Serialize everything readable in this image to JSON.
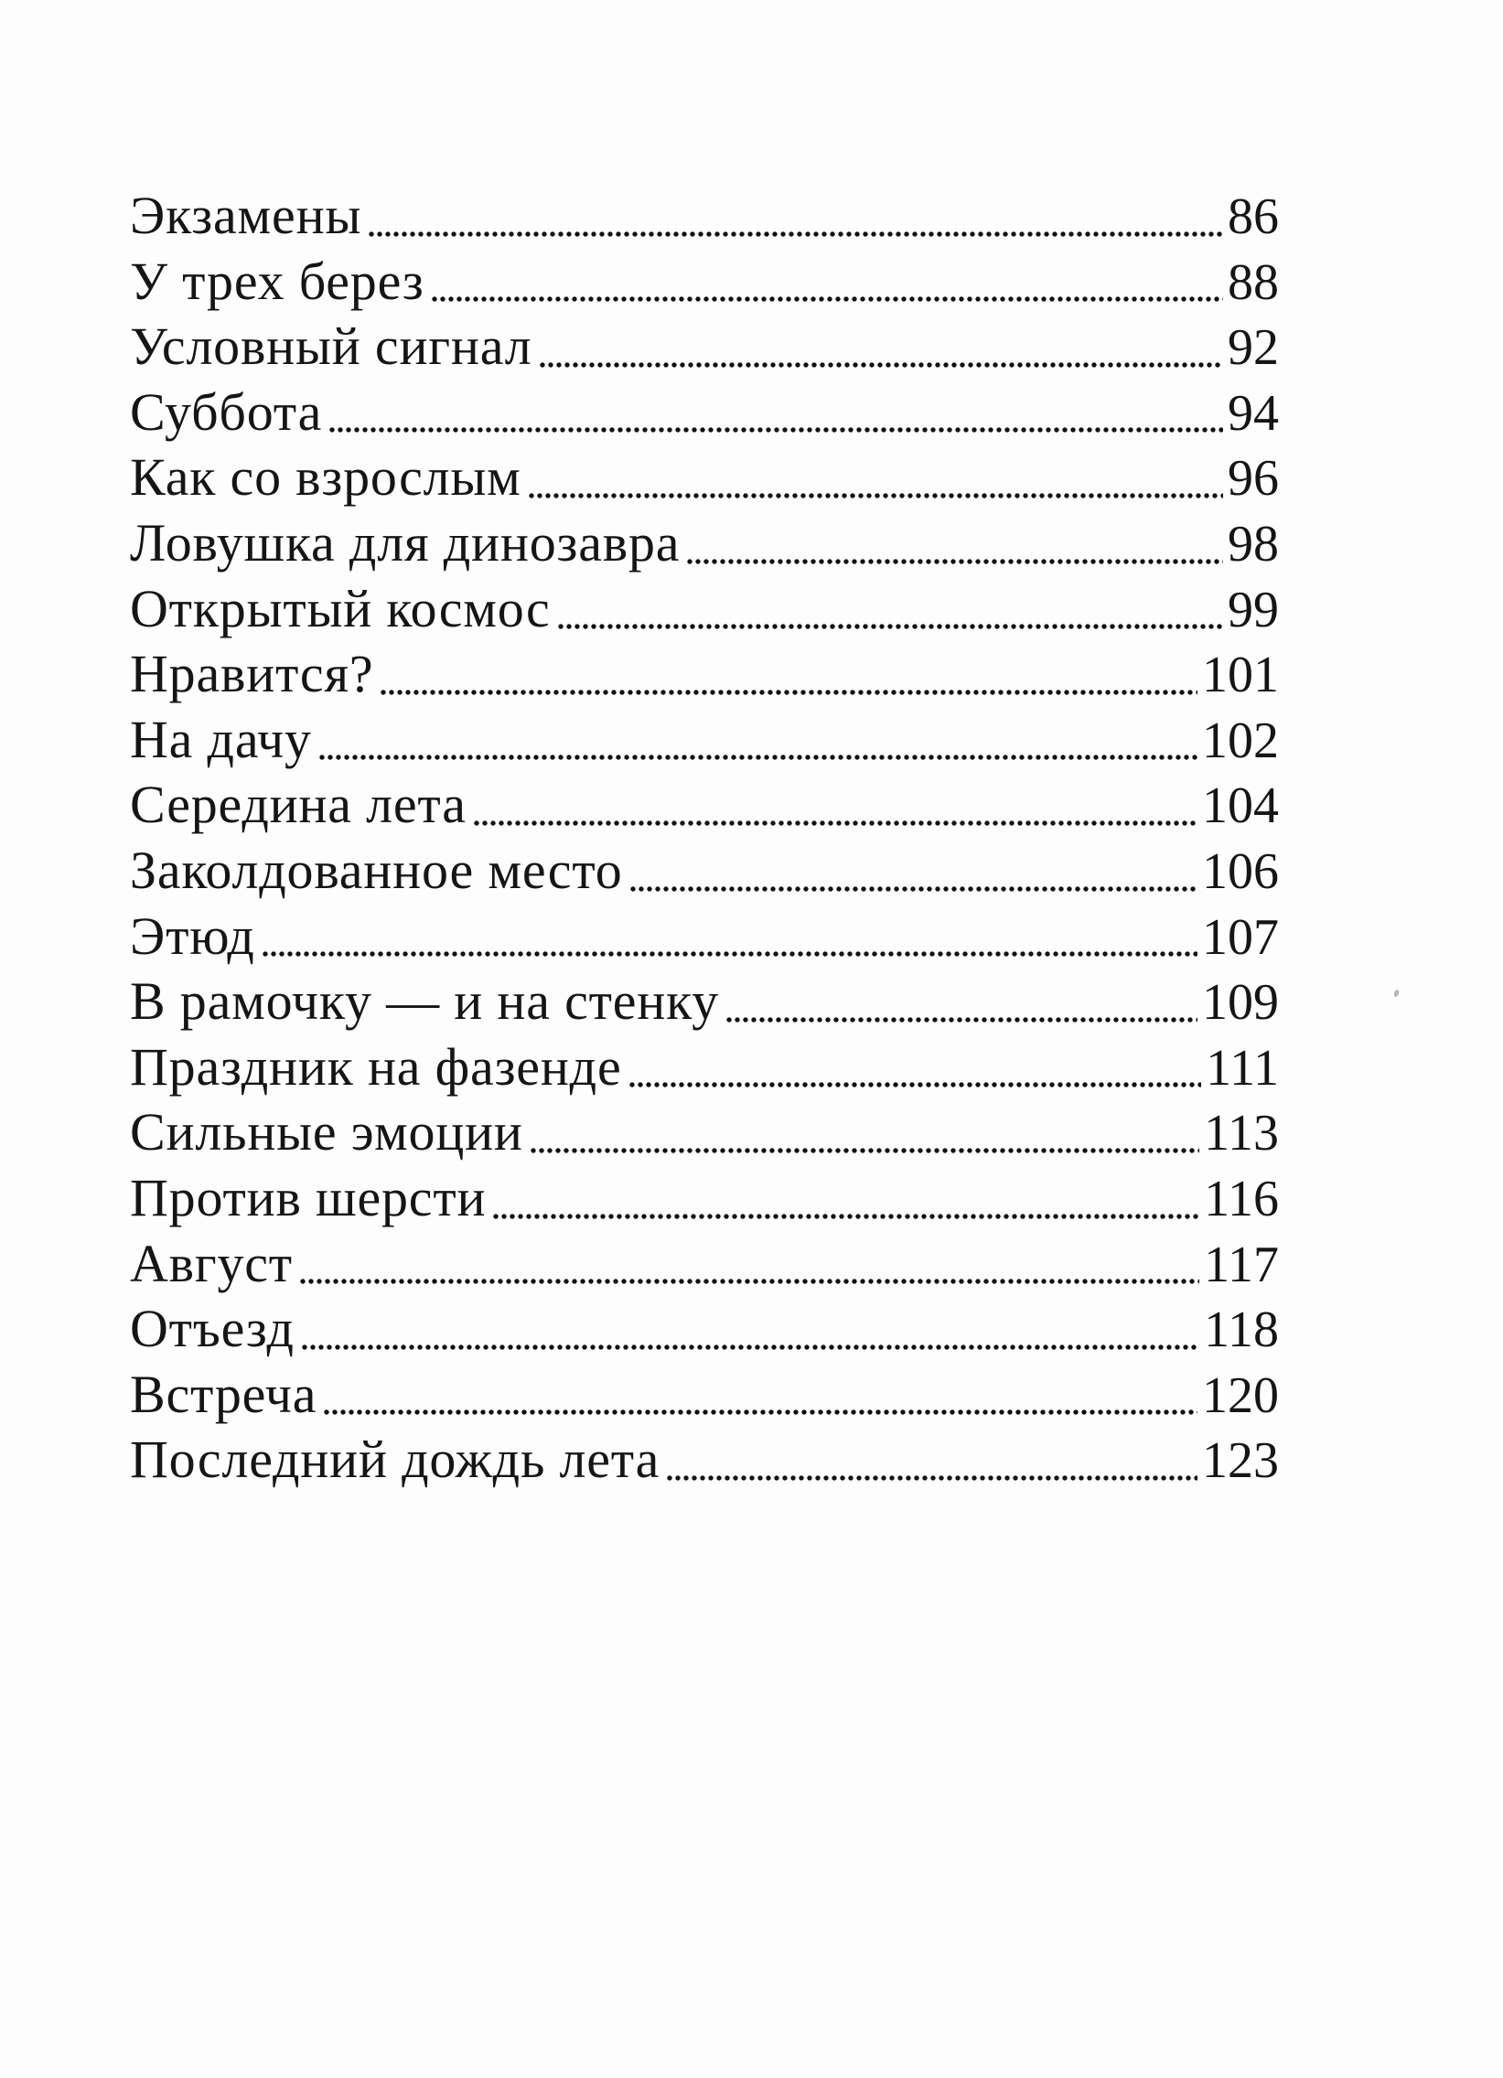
{
  "colors": {
    "page_background": "#fdfdfd",
    "text": "#151515",
    "dots": "#111111"
  },
  "toc": {
    "entries": [
      {
        "title": "Экзамены",
        "page": "86"
      },
      {
        "title": "У трех берез",
        "page": "88"
      },
      {
        "title": "Условный сигнал",
        "page": "92"
      },
      {
        "title": "Суббота",
        "page": "94"
      },
      {
        "title": "Как со взрослым",
        "page": "96"
      },
      {
        "title": "Ловушка для динозавра",
        "page": "98"
      },
      {
        "title": "Открытый космос",
        "page": "99"
      },
      {
        "title": "Нравится?",
        "page": "101"
      },
      {
        "title": "На дачу",
        "page": "102"
      },
      {
        "title": "Середина лета",
        "page": "104"
      },
      {
        "title": "Заколдованное место",
        "page": "106"
      },
      {
        "title": "Этюд",
        "page": "107"
      },
      {
        "title": "В рамочку — и на стенку",
        "page": "109"
      },
      {
        "title": "Праздник на фазенде",
        "page": "111"
      },
      {
        "title": "Сильные эмоции",
        "page": "113"
      },
      {
        "title": "Против шерсти",
        "page": "116"
      },
      {
        "title": "Август",
        "page": "117"
      },
      {
        "title": "Отъезд",
        "page": "118"
      },
      {
        "title": "Встреча",
        "page": "120"
      },
      {
        "title": "Последний дождь лета",
        "page": "123"
      }
    ]
  }
}
